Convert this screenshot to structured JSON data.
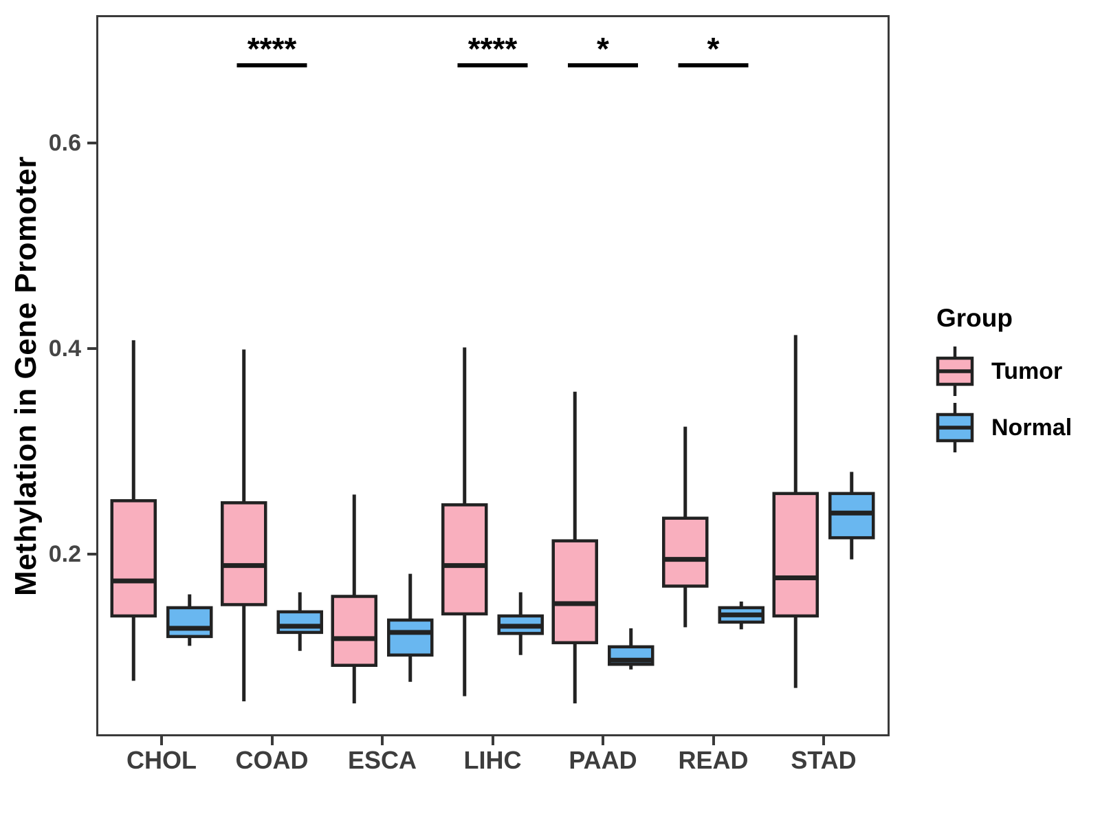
{
  "figure": {
    "legend": {
      "title": "Group",
      "entries": [
        {
          "label": "Tumor",
          "color": "#F9AFBE"
        },
        {
          "label": "Normal",
          "color": "#69B7F0"
        }
      ]
    }
  },
  "chart_data": {
    "type": "boxplot",
    "title": "",
    "xlabel": "",
    "ylabel": "Methylation in Gene Promoter",
    "categories": [
      "CHOL",
      "COAD",
      "ESCA",
      "LIHC",
      "PAAD",
      "READ",
      "STAD"
    ],
    "ytick_labels": [
      "0.2",
      "0.4",
      "0.6"
    ],
    "ylim": [
      0.023,
      0.724
    ],
    "grid": false,
    "legend_position": "right",
    "series": [
      {
        "name": "Tumor",
        "color": "#F9AFBE",
        "boxes": [
          {
            "category": "CHOL",
            "low": 0.077,
            "q1": 0.14,
            "median": 0.174,
            "q3": 0.252,
            "high": 0.408
          },
          {
            "category": "COAD",
            "low": 0.057,
            "q1": 0.151,
            "median": 0.189,
            "q3": 0.25,
            "high": 0.399
          },
          {
            "category": "ESCA",
            "low": 0.055,
            "q1": 0.092,
            "median": 0.118,
            "q3": 0.159,
            "high": 0.258
          },
          {
            "category": "LIHC",
            "low": 0.062,
            "q1": 0.142,
            "median": 0.189,
            "q3": 0.248,
            "high": 0.401
          },
          {
            "category": "PAAD",
            "low": 0.055,
            "q1": 0.114,
            "median": 0.152,
            "q3": 0.213,
            "high": 0.358
          },
          {
            "category": "READ",
            "low": 0.129,
            "q1": 0.169,
            "median": 0.195,
            "q3": 0.235,
            "high": 0.324
          },
          {
            "category": "STAD",
            "low": 0.07,
            "q1": 0.14,
            "median": 0.177,
            "q3": 0.259,
            "high": 0.413
          }
        ]
      },
      {
        "name": "Normal",
        "color": "#69B7F0",
        "boxes": [
          {
            "category": "CHOL",
            "low": 0.111,
            "q1": 0.12,
            "median": 0.128,
            "q3": 0.148,
            "high": 0.161
          },
          {
            "category": "COAD",
            "low": 0.106,
            "q1": 0.124,
            "median": 0.13,
            "q3": 0.144,
            "high": 0.163
          },
          {
            "category": "ESCA",
            "low": 0.076,
            "q1": 0.102,
            "median": 0.124,
            "q3": 0.136,
            "high": 0.181
          },
          {
            "category": "LIHC",
            "low": 0.102,
            "q1": 0.123,
            "median": 0.13,
            "q3": 0.14,
            "high": 0.163
          },
          {
            "category": "PAAD",
            "low": 0.088,
            "q1": 0.093,
            "median": 0.097,
            "q3": 0.11,
            "high": 0.128
          },
          {
            "category": "READ",
            "low": 0.127,
            "q1": 0.134,
            "median": 0.141,
            "q3": 0.148,
            "high": 0.154
          },
          {
            "category": "STAD",
            "low": 0.195,
            "q1": 0.216,
            "median": 0.24,
            "q3": 0.259,
            "high": 0.28
          }
        ]
      }
    ],
    "significance": [
      {
        "category": "COAD",
        "label": "****"
      },
      {
        "category": "LIHC",
        "label": "****"
      },
      {
        "category": "PAAD",
        "label": "*"
      },
      {
        "category": "READ",
        "label": "*"
      }
    ]
  },
  "style": {
    "box_outline": "#222222",
    "panel_border": "#3a3a3a",
    "tick_label_color": "#454545",
    "significance_color": "#000000"
  }
}
